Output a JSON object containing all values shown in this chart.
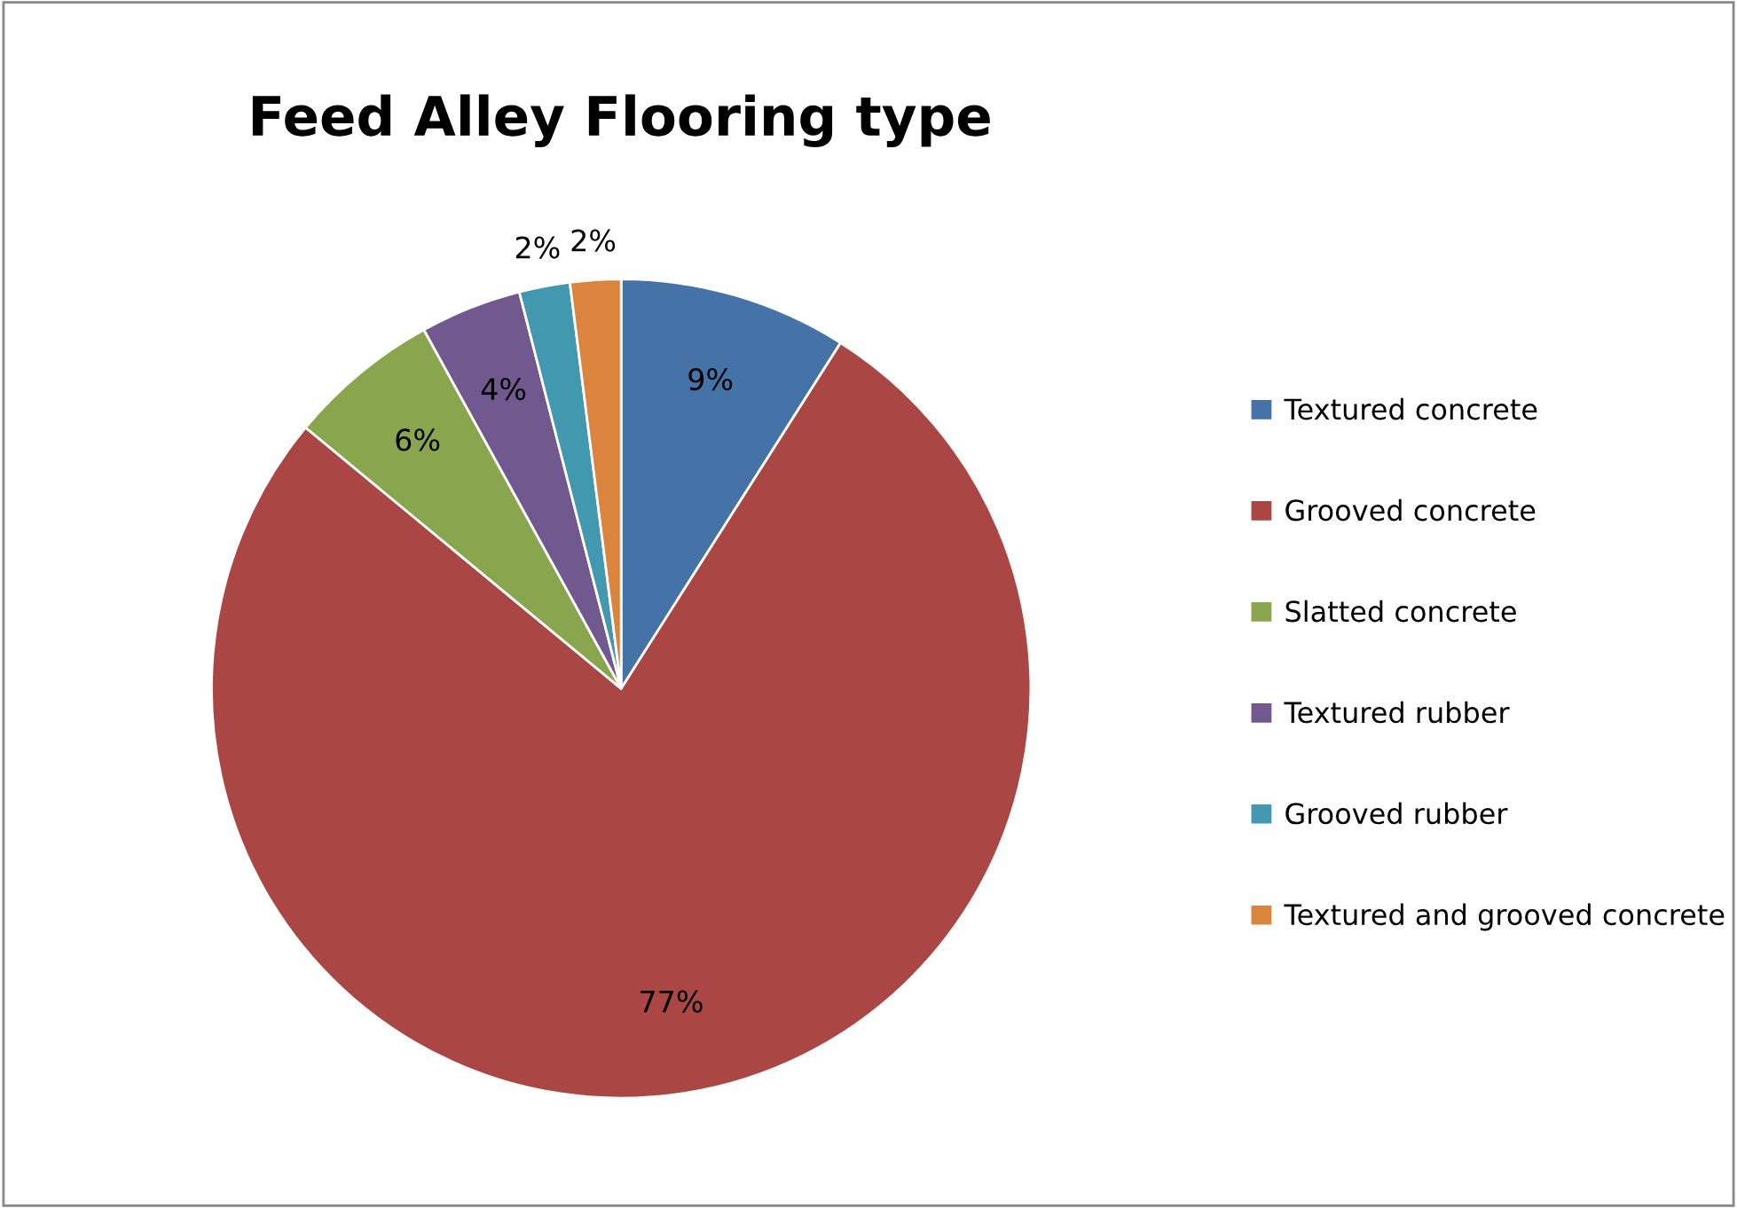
{
  "chart_data": {
    "type": "pie",
    "title": "Feed Alley Flooring type",
    "categories": [
      "Textured concrete",
      "Grooved concrete",
      "Slatted concrete",
      "Textured rubber",
      "Grooved rubber",
      "Textured and grooved concrete"
    ],
    "values": [
      9,
      77,
      6,
      4,
      2,
      2
    ],
    "colors": [
      "#4572a7",
      "#aa4643",
      "#89a54e",
      "#71588f",
      "#4198af",
      "#db843d"
    ],
    "value_labels": [
      "9%",
      "77%",
      "6%",
      "4%",
      "2%",
      "2%"
    ],
    "legend": "right"
  }
}
